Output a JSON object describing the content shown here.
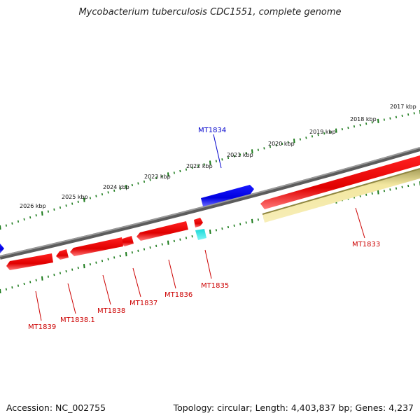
{
  "title": "Mycobacterium tuberculosis CDC1551, complete genome",
  "footer": {
    "accession": "Accession: NC_002755",
    "summary": "Topology: circular; Length: 4,403,837 bp; Genes: 4,237"
  },
  "colors": {
    "backbone": "#808080",
    "forward_gene": "#ff0000",
    "reverse_gene": "#0000ff",
    "rna_gene": "#00e5e5",
    "misc_feature": "#f0e39a",
    "tick": "#1a7a1a",
    "forward_label": "#cc0000",
    "reverse_label": "#0000cc"
  },
  "scale_labels": [
    "2017 kbp",
    "2018 kbp",
    "2019 kbp",
    "2020 kbp",
    "2021 kbp",
    "2022 kbp",
    "2023 kbp",
    "2024 kbp",
    "2025 kbp",
    "2026 kbp"
  ],
  "genes": [
    {
      "label": "MT1834",
      "strand": "reverse",
      "type": "gene"
    },
    {
      "label": "MT1833",
      "strand": "forward",
      "type": "gene"
    },
    {
      "label": "MT1835",
      "strand": "forward",
      "type": "rna"
    },
    {
      "label": "MT1836",
      "strand": "forward",
      "type": "gene"
    },
    {
      "label": "MT1837",
      "strand": "forward",
      "type": "gene"
    },
    {
      "label": "MT1838",
      "strand": "forward",
      "type": "gene"
    },
    {
      "label": "MT1838.1",
      "strand": "forward",
      "type": "gene"
    },
    {
      "label": "MT1839",
      "strand": "forward",
      "type": "gene"
    }
  ]
}
